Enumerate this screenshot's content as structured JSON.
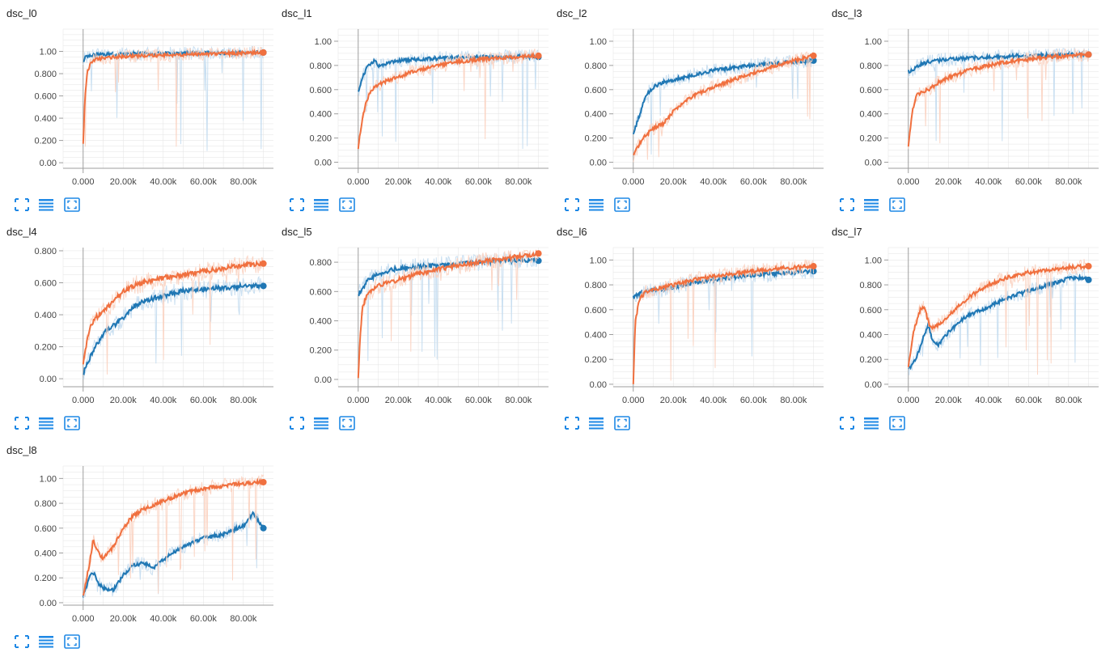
{
  "colors": {
    "train": "#f0703f",
    "validation": "#1f77b4",
    "train_light": "#fbd2c0",
    "validation_light": "#c3dcef",
    "icon": "#1e88e5",
    "gridline": "#e3e3e3",
    "axis": "#9e9e9e"
  },
  "toolbar_icons": [
    "fit-to-screen-icon",
    "data-table-icon",
    "fit-domain-icon"
  ],
  "chart_data": [
    {
      "type": "line",
      "title": "dsc_l0",
      "xlim": [
        -10000,
        95000
      ],
      "ylim": [
        -0.05,
        1.2
      ],
      "x_ticks": [
        "0.000",
        "20.00k",
        "40.00k",
        "60.00k",
        "80.00k"
      ],
      "y_ticks": [
        "0.00",
        "0.200",
        "0.400",
        "0.600",
        "0.800",
        "1.00"
      ],
      "series": [
        {
          "color_key": "validation",
          "x": [
            0,
            1000,
            3000,
            6000,
            10000,
            20000,
            30000,
            40000,
            50000,
            60000,
            70000,
            80000,
            90000
          ],
          "y": [
            0.9,
            0.95,
            0.96,
            0.97,
            0.97,
            0.975,
            0.98,
            0.98,
            0.985,
            0.985,
            0.985,
            0.99,
            0.99
          ]
        },
        {
          "color_key": "train",
          "x": [
            0,
            1000,
            2000,
            4000,
            6000,
            10000,
            15000,
            20000,
            30000,
            40000,
            50000,
            60000,
            70000,
            80000,
            90000
          ],
          "y": [
            0.17,
            0.6,
            0.82,
            0.9,
            0.93,
            0.94,
            0.95,
            0.955,
            0.96,
            0.965,
            0.97,
            0.975,
            0.98,
            0.985,
            0.99
          ]
        }
      ]
    },
    {
      "type": "line",
      "title": "dsc_l1",
      "xlim": [
        -10000,
        95000
      ],
      "ylim": [
        -0.05,
        1.1
      ],
      "x_ticks": [
        "0.000",
        "20.00k",
        "40.00k",
        "60.00k",
        "80.00k"
      ],
      "y_ticks": [
        "0.00",
        "0.200",
        "0.400",
        "0.600",
        "0.800",
        "1.00"
      ],
      "series": [
        {
          "color_key": "validation",
          "x": [
            0,
            2000,
            5000,
            8000,
            10000,
            15000,
            20000,
            30000,
            40000,
            50000,
            60000,
            70000,
            80000,
            90000
          ],
          "y": [
            0.58,
            0.7,
            0.8,
            0.84,
            0.8,
            0.82,
            0.84,
            0.85,
            0.86,
            0.865,
            0.87,
            0.87,
            0.875,
            0.87
          ]
        },
        {
          "color_key": "train",
          "x": [
            0,
            2000,
            4000,
            6000,
            8000,
            10000,
            15000,
            20000,
            25000,
            30000,
            40000,
            50000,
            60000,
            70000,
            80000,
            90000
          ],
          "y": [
            0.12,
            0.35,
            0.5,
            0.58,
            0.62,
            0.64,
            0.68,
            0.7,
            0.74,
            0.76,
            0.8,
            0.83,
            0.85,
            0.86,
            0.87,
            0.88
          ]
        }
      ]
    },
    {
      "type": "line",
      "title": "dsc_l2",
      "xlim": [
        -10000,
        95000
      ],
      "ylim": [
        -0.05,
        1.1
      ],
      "x_ticks": [
        "0.000",
        "20.00k",
        "40.00k",
        "60.00k",
        "80.00k"
      ],
      "y_ticks": [
        "0.00",
        "0.200",
        "0.400",
        "0.600",
        "0.800",
        "1.00"
      ],
      "series": [
        {
          "color_key": "validation",
          "x": [
            0,
            3000,
            6000,
            10000,
            15000,
            20000,
            30000,
            40000,
            50000,
            60000,
            70000,
            80000,
            90000
          ],
          "y": [
            0.24,
            0.38,
            0.55,
            0.62,
            0.66,
            0.68,
            0.72,
            0.76,
            0.78,
            0.8,
            0.82,
            0.83,
            0.84
          ]
        },
        {
          "color_key": "train",
          "x": [
            0,
            3000,
            6000,
            10000,
            15000,
            20000,
            25000,
            30000,
            40000,
            50000,
            60000,
            70000,
            80000,
            90000
          ],
          "y": [
            0.05,
            0.15,
            0.22,
            0.28,
            0.32,
            0.42,
            0.5,
            0.55,
            0.62,
            0.68,
            0.74,
            0.79,
            0.84,
            0.88
          ]
        }
      ]
    },
    {
      "type": "line",
      "title": "dsc_l3",
      "xlim": [
        -10000,
        95000
      ],
      "ylim": [
        -0.05,
        1.1
      ],
      "x_ticks": [
        "0.000",
        "20.00k",
        "40.00k",
        "60.00k",
        "80.00k"
      ],
      "y_ticks": [
        "0.00",
        "0.200",
        "0.400",
        "0.600",
        "0.800",
        "1.00"
      ],
      "series": [
        {
          "color_key": "validation",
          "x": [
            0,
            2000,
            5000,
            10000,
            15000,
            20000,
            30000,
            40000,
            50000,
            60000,
            70000,
            80000,
            90000
          ],
          "y": [
            0.75,
            0.76,
            0.8,
            0.83,
            0.84,
            0.85,
            0.86,
            0.87,
            0.875,
            0.88,
            0.885,
            0.89,
            0.89
          ]
        },
        {
          "color_key": "train",
          "x": [
            0,
            2000,
            4000,
            7000,
            10000,
            15000,
            20000,
            30000,
            40000,
            50000,
            60000,
            70000,
            80000,
            90000
          ],
          "y": [
            0.13,
            0.42,
            0.55,
            0.58,
            0.6,
            0.66,
            0.7,
            0.76,
            0.8,
            0.83,
            0.85,
            0.87,
            0.88,
            0.89
          ]
        }
      ]
    },
    {
      "type": "line",
      "title": "dsc_l4",
      "xlim": [
        -10000,
        95000
      ],
      "ylim": [
        -0.05,
        0.82
      ],
      "x_ticks": [
        "0.000",
        "20.00k",
        "40.00k",
        "60.00k",
        "80.00k"
      ],
      "y_ticks": [
        "0.00",
        "0.200",
        "0.400",
        "0.600",
        "0.800"
      ],
      "series": [
        {
          "color_key": "validation",
          "x": [
            0,
            3000,
            6000,
            10000,
            15000,
            20000,
            25000,
            30000,
            40000,
            50000,
            60000,
            70000,
            80000,
            90000
          ],
          "y": [
            0.03,
            0.12,
            0.2,
            0.28,
            0.33,
            0.38,
            0.45,
            0.48,
            0.52,
            0.55,
            0.56,
            0.57,
            0.58,
            0.58
          ]
        },
        {
          "color_key": "train",
          "x": [
            0,
            3000,
            6000,
            10000,
            15000,
            20000,
            25000,
            30000,
            40000,
            50000,
            60000,
            70000,
            80000,
            90000
          ],
          "y": [
            0.1,
            0.3,
            0.38,
            0.42,
            0.48,
            0.55,
            0.58,
            0.6,
            0.63,
            0.65,
            0.67,
            0.69,
            0.71,
            0.72
          ]
        }
      ]
    },
    {
      "type": "line",
      "title": "dsc_l5",
      "xlim": [
        -10000,
        95000
      ],
      "ylim": [
        -0.05,
        0.9
      ],
      "x_ticks": [
        "0.000",
        "20.00k",
        "40.00k",
        "60.00k",
        "80.00k"
      ],
      "y_ticks": [
        "0.00",
        "0.200",
        "0.400",
        "0.600",
        "0.800"
      ],
      "series": [
        {
          "color_key": "validation",
          "x": [
            0,
            2000,
            5000,
            10000,
            15000,
            20000,
            30000,
            40000,
            50000,
            60000,
            70000,
            80000,
            90000
          ],
          "y": [
            0.58,
            0.62,
            0.68,
            0.72,
            0.74,
            0.76,
            0.77,
            0.78,
            0.79,
            0.8,
            0.81,
            0.81,
            0.81
          ]
        },
        {
          "color_key": "train",
          "x": [
            0,
            1000,
            2000,
            4000,
            6000,
            10000,
            15000,
            20000,
            30000,
            40000,
            50000,
            60000,
            70000,
            80000,
            90000
          ],
          "y": [
            0.0,
            0.3,
            0.48,
            0.56,
            0.6,
            0.64,
            0.66,
            0.68,
            0.72,
            0.75,
            0.78,
            0.8,
            0.82,
            0.84,
            0.86
          ]
        }
      ]
    },
    {
      "type": "line",
      "title": "dsc_l6",
      "xlim": [
        -10000,
        95000
      ],
      "ylim": [
        -0.02,
        1.1
      ],
      "x_ticks": [
        "0.000",
        "20.00k",
        "40.00k",
        "60.00k",
        "80.00k"
      ],
      "y_ticks": [
        "0.00",
        "0.200",
        "0.400",
        "0.600",
        "0.800",
        "1.00"
      ],
      "series": [
        {
          "color_key": "validation",
          "x": [
            0,
            2000,
            5000,
            10000,
            15000,
            20000,
            30000,
            40000,
            50000,
            60000,
            70000,
            80000,
            90000
          ],
          "y": [
            0.7,
            0.72,
            0.74,
            0.76,
            0.77,
            0.78,
            0.82,
            0.84,
            0.86,
            0.88,
            0.89,
            0.9,
            0.91
          ]
        },
        {
          "color_key": "train",
          "x": [
            0,
            1000,
            3000,
            6000,
            10000,
            15000,
            20000,
            30000,
            40000,
            50000,
            60000,
            70000,
            80000,
            90000
          ],
          "y": [
            0.0,
            0.5,
            0.68,
            0.74,
            0.76,
            0.78,
            0.8,
            0.84,
            0.87,
            0.89,
            0.91,
            0.93,
            0.94,
            0.95
          ]
        }
      ]
    },
    {
      "type": "line",
      "title": "dsc_l7",
      "xlim": [
        -10000,
        95000
      ],
      "ylim": [
        -0.02,
        1.1
      ],
      "x_ticks": [
        "0.000",
        "20.00k",
        "40.00k",
        "60.00k",
        "80.00k"
      ],
      "y_ticks": [
        "0.00",
        "0.200",
        "0.400",
        "0.600",
        "0.800",
        "1.00"
      ],
      "series": [
        {
          "color_key": "validation",
          "x": [
            0,
            3000,
            6000,
            8000,
            10000,
            12000,
            15000,
            20000,
            30000,
            40000,
            50000,
            60000,
            70000,
            80000,
            88000,
            90000
          ],
          "y": [
            0.12,
            0.18,
            0.3,
            0.4,
            0.48,
            0.35,
            0.32,
            0.42,
            0.56,
            0.62,
            0.7,
            0.75,
            0.8,
            0.85,
            0.86,
            0.84
          ]
        },
        {
          "color_key": "train",
          "x": [
            0,
            3000,
            6000,
            8000,
            10000,
            12000,
            15000,
            20000,
            30000,
            40000,
            50000,
            60000,
            70000,
            80000,
            90000
          ],
          "y": [
            0.15,
            0.45,
            0.6,
            0.62,
            0.5,
            0.45,
            0.48,
            0.55,
            0.7,
            0.8,
            0.86,
            0.9,
            0.92,
            0.94,
            0.95
          ]
        }
      ]
    },
    {
      "type": "line",
      "title": "dsc_l8",
      "xlim": [
        -10000,
        95000
      ],
      "ylim": [
        -0.02,
        1.1
      ],
      "x_ticks": [
        "0.000",
        "20.00k",
        "40.00k",
        "60.00k",
        "80.00k"
      ],
      "y_ticks": [
        "0.00",
        "0.200",
        "0.400",
        "0.600",
        "0.800",
        "1.00"
      ],
      "series": [
        {
          "color_key": "validation",
          "x": [
            0,
            3000,
            5000,
            8000,
            10000,
            15000,
            20000,
            25000,
            30000,
            35000,
            40000,
            50000,
            60000,
            70000,
            80000,
            85000,
            90000
          ],
          "y": [
            0.05,
            0.2,
            0.25,
            0.15,
            0.12,
            0.1,
            0.22,
            0.3,
            0.32,
            0.28,
            0.35,
            0.45,
            0.52,
            0.55,
            0.62,
            0.72,
            0.6
          ]
        },
        {
          "color_key": "train",
          "x": [
            0,
            3000,
            5000,
            8000,
            10000,
            15000,
            20000,
            25000,
            30000,
            40000,
            50000,
            60000,
            70000,
            80000,
            90000
          ],
          "y": [
            0.05,
            0.3,
            0.5,
            0.4,
            0.35,
            0.45,
            0.6,
            0.7,
            0.75,
            0.82,
            0.88,
            0.92,
            0.94,
            0.96,
            0.97
          ]
        }
      ]
    }
  ]
}
